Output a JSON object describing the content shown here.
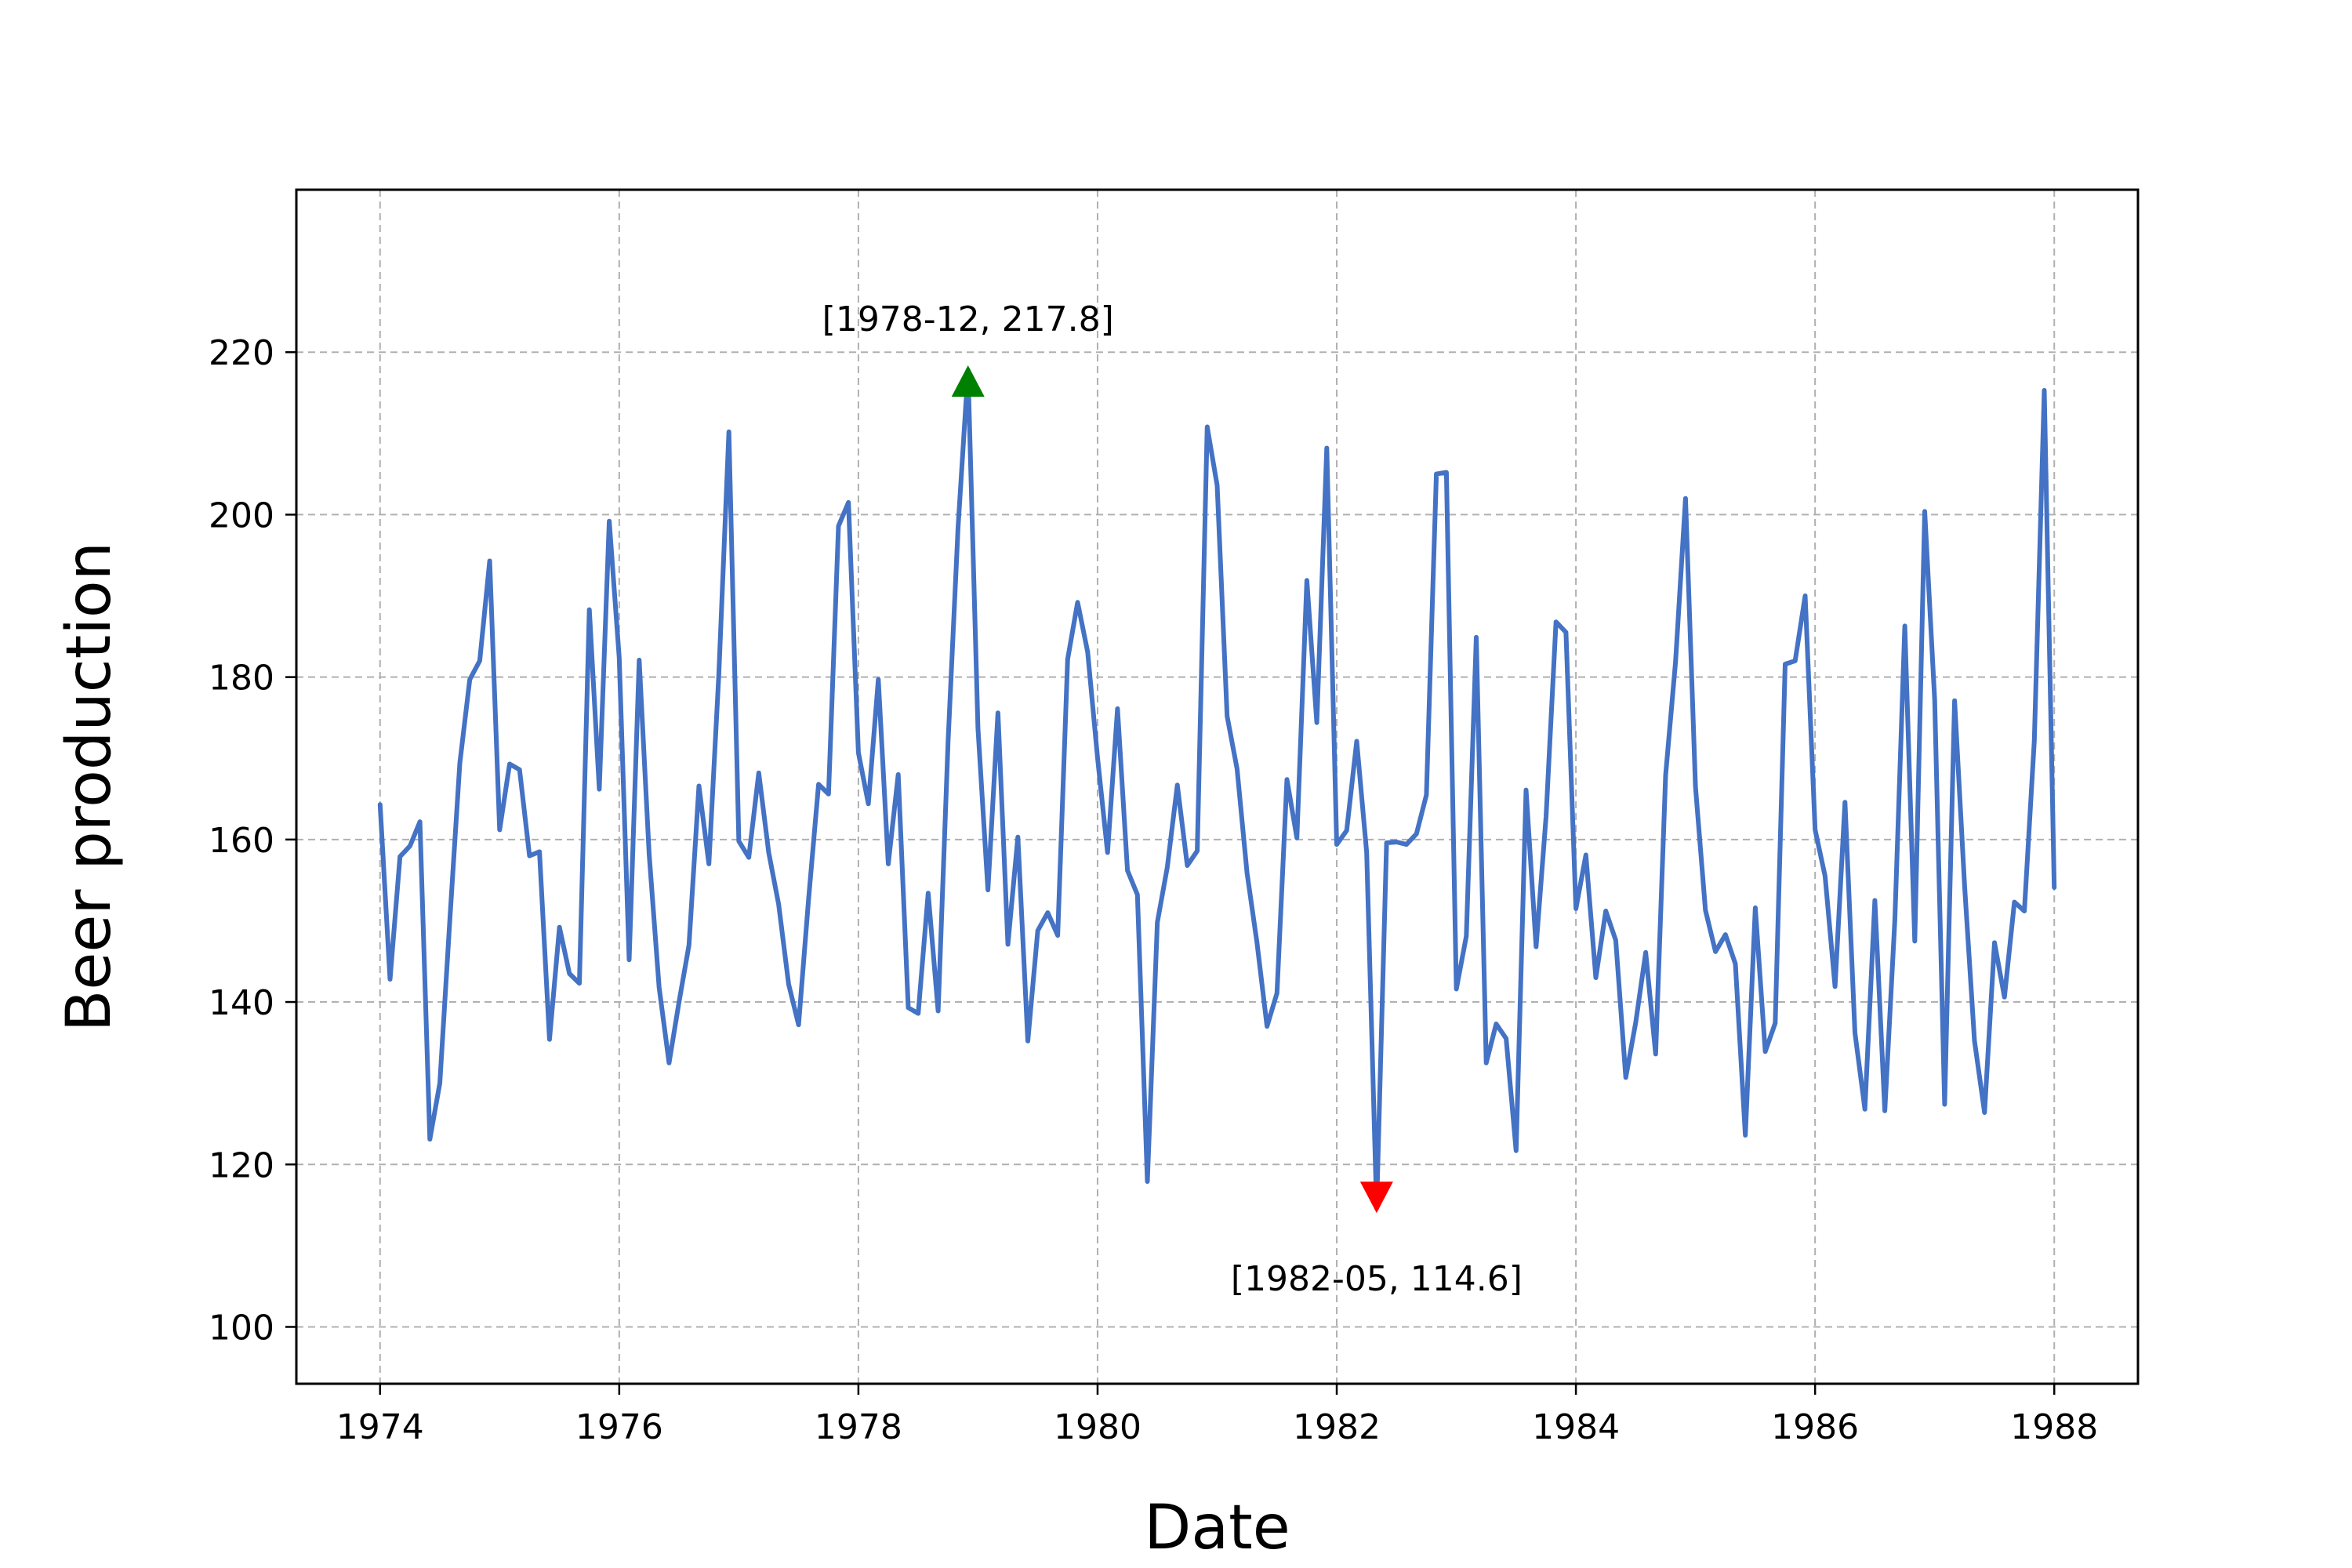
{
  "chart_data": {
    "type": "line",
    "title": "",
    "xlabel": "Date",
    "ylabel": "Beer production",
    "xlim": [
      1973.3,
      1988.7
    ],
    "ylim": [
      93,
      240
    ],
    "x_ticks": [
      "1974",
      "1976",
      "1978",
      "1980",
      "1982",
      "1984",
      "1986",
      "1988"
    ],
    "y_ticks": [
      "100",
      "120",
      "140",
      "160",
      "180",
      "200",
      "220"
    ],
    "grid": true,
    "line_color": "#4472c4",
    "series": [
      {
        "start": "1974-01",
        "frequency": "monthly",
        "values": [
          164.3,
          142.8,
          157.9,
          159.2,
          162.2,
          123.1,
          130.0,
          150.0,
          169.4,
          179.7,
          182.0,
          194.3,
          161.2,
          169.3,
          168.6,
          158.0,
          158.5,
          135.4,
          149.2,
          143.5,
          142.3,
          188.3,
          166.2,
          199.2,
          182.4,
          145.2,
          182.1,
          158.2,
          141.8,
          132.5,
          140.0,
          147.0,
          166.6,
          157.0,
          180.4,
          210.2,
          159.8,
          157.8,
          168.2,
          158.4,
          152.0,
          142.2,
          137.2,
          152.6,
          166.8,
          165.6,
          198.6,
          201.5,
          170.7,
          164.4,
          179.7,
          157.0,
          168.0,
          139.3,
          138.6,
          153.4,
          138.9,
          172.1,
          198.4,
          217.8,
          173.7,
          153.8,
          175.6,
          147.1,
          160.3,
          135.2,
          148.8,
          151.0,
          148.2,
          182.2,
          189.2,
          183.1,
          170.0,
          158.4,
          176.1,
          156.2,
          153.2,
          117.9,
          149.8,
          156.6,
          166.7,
          156.8,
          158.6,
          210.8,
          203.6,
          175.2,
          168.7,
          155.9,
          147.3,
          137.0,
          141.1,
          167.4,
          160.2,
          191.9,
          174.4,
          208.2,
          159.4,
          161.1,
          172.1,
          158.4,
          114.6,
          159.6,
          159.7,
          159.4,
          160.7,
          165.5,
          205.0,
          205.2,
          141.6,
          148.1,
          184.9,
          132.5,
          137.3,
          135.5,
          121.7,
          166.1,
          146.8,
          162.8,
          186.8,
          185.5,
          151.5,
          158.1,
          143.0,
          151.2,
          147.6,
          130.7,
          137.5,
          146.1,
          133.6,
          167.9,
          181.9,
          202.0,
          166.5,
          151.3,
          146.2,
          148.3,
          144.7,
          123.6,
          151.6,
          133.9,
          137.4,
          181.6,
          182.0,
          190.0,
          161.2,
          155.5,
          141.9,
          164.6,
          136.2,
          126.8,
          152.5,
          126.6,
          150.1,
          186.3,
          147.5,
          200.4,
          177.2,
          127.4,
          177.1,
          154.4,
          135.2,
          126.4,
          147.3,
          140.6,
          152.3,
          151.2,
          172.2,
          215.3,
          154.1
        ]
      }
    ],
    "annotations": [
      {
        "label": "[1978-12, 217.8]",
        "x": "1978-12",
        "y": 217.8,
        "marker": "up-triangle",
        "color": "#008000"
      },
      {
        "label": "[1982-05, 114.6]",
        "x": "1982-05",
        "y": 114.6,
        "marker": "down-triangle",
        "color": "#ff0000"
      }
    ]
  }
}
